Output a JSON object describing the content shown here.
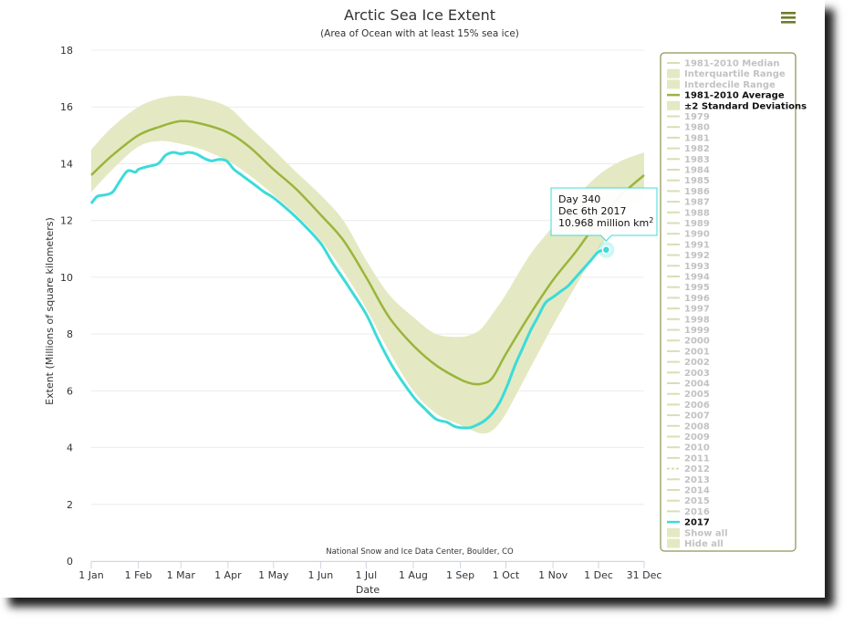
{
  "colors": {
    "average": "#9ab53c",
    "std_band": "#e4e9c3",
    "current": "#3cdbd9",
    "legend_border": "#6d7c2d",
    "legend_active_text": "#111111",
    "legend_inactive_text": "#c2c2c2",
    "legend_inactive_line": "#d8dfb4",
    "tooltip_border": "#3cdbd9"
  },
  "menu": {
    "icon": "hamburger-menu-icon"
  },
  "chart_data": {
    "type": "line",
    "title": "Arctic Sea Ice Extent",
    "subtitle": "(Area of Ocean with at least 15% sea ice)",
    "xlabel": "Date",
    "ylabel": "Extent (Millions of square kilometers)",
    "credit": "National Snow and Ice Data Center, Boulder, CO",
    "xlim": [
      1,
      365
    ],
    "ylim": [
      0,
      18
    ],
    "yticks": [
      0,
      2,
      4,
      6,
      8,
      10,
      12,
      14,
      16,
      18
    ],
    "y_tick_labels": [
      "0",
      "2",
      "4",
      "6",
      "8",
      "10",
      "12",
      "14",
      "16",
      "18"
    ],
    "xticks": [
      {
        "day": 1,
        "label": "1 Jan"
      },
      {
        "day": 32,
        "label": "1 Feb"
      },
      {
        "day": 60,
        "label": "1 Mar"
      },
      {
        "day": 91,
        "label": "1 Apr"
      },
      {
        "day": 121,
        "label": "1 May"
      },
      {
        "day": 152,
        "label": "1 Jun"
      },
      {
        "day": 182,
        "label": "1 Jul"
      },
      {
        "day": 213,
        "label": "1 Aug"
      },
      {
        "day": 244,
        "label": "1 Sep"
      },
      {
        "day": 274,
        "label": "1 Oct"
      },
      {
        "day": 305,
        "label": "1 Nov"
      },
      {
        "day": 335,
        "label": "1 Dec"
      },
      {
        "day": 365,
        "label": "31 Dec"
      }
    ],
    "grid": "horizontal",
    "legend_position": "right",
    "series": [
      {
        "name": "±2 Standard Deviations",
        "kind": "band",
        "x": [
          1,
          15,
          32,
          46,
          60,
          74,
          91,
          105,
          121,
          136,
          152,
          167,
          182,
          197,
          213,
          228,
          244,
          252,
          258,
          265,
          274,
          290,
          305,
          320,
          335,
          350,
          365
        ],
        "low": [
          13.0,
          13.8,
          14.6,
          14.8,
          14.7,
          14.5,
          14.1,
          13.6,
          12.9,
          12.2,
          11.3,
          10.2,
          8.9,
          7.4,
          6.0,
          5.2,
          4.8,
          4.6,
          4.5,
          4.6,
          5.2,
          6.8,
          8.3,
          9.7,
          11.0,
          12.0,
          12.9
        ],
        "high": [
          14.5,
          15.3,
          16.0,
          16.3,
          16.4,
          16.3,
          16.0,
          15.3,
          14.5,
          13.7,
          12.9,
          12.0,
          10.6,
          9.4,
          8.6,
          8.0,
          7.9,
          8.0,
          8.2,
          8.7,
          9.4,
          10.8,
          11.8,
          12.8,
          13.6,
          14.1,
          14.4
        ]
      },
      {
        "name": "1981-2010 Average",
        "kind": "line",
        "x": [
          1,
          15,
          32,
          46,
          60,
          74,
          91,
          105,
          121,
          136,
          152,
          167,
          182,
          197,
          213,
          228,
          244,
          252,
          258,
          265,
          274,
          290,
          305,
          320,
          335,
          350,
          365
        ],
        "y": [
          13.6,
          14.3,
          15.0,
          15.3,
          15.5,
          15.4,
          15.1,
          14.6,
          13.8,
          13.1,
          12.2,
          11.3,
          10.0,
          8.6,
          7.6,
          6.9,
          6.4,
          6.25,
          6.25,
          6.45,
          7.3,
          8.7,
          9.9,
          10.9,
          12.0,
          12.9,
          13.6
        ]
      },
      {
        "name": "2017",
        "kind": "line",
        "x": [
          1,
          5,
          10,
          15,
          20,
          25,
          30,
          32,
          38,
          45,
          50,
          55,
          60,
          65,
          70,
          75,
          80,
          85,
          90,
          95,
          100,
          105,
          110,
          115,
          121,
          130,
          140,
          152,
          160,
          170,
          182,
          190,
          200,
          213,
          220,
          228,
          235,
          240,
          244,
          250,
          255,
          260,
          265,
          270,
          275,
          280,
          285,
          290,
          295,
          300,
          305,
          310,
          315,
          320,
          325,
          330,
          335,
          340
        ],
        "y": [
          12.6,
          12.85,
          12.9,
          13.0,
          13.4,
          13.75,
          13.7,
          13.8,
          13.9,
          14.0,
          14.3,
          14.4,
          14.35,
          14.4,
          14.35,
          14.2,
          14.1,
          14.15,
          14.1,
          13.8,
          13.6,
          13.4,
          13.2,
          13.0,
          12.8,
          12.4,
          11.9,
          11.2,
          10.5,
          9.7,
          8.7,
          7.8,
          6.8,
          5.8,
          5.4,
          5.0,
          4.9,
          4.75,
          4.7,
          4.7,
          4.8,
          4.95,
          5.2,
          5.6,
          6.2,
          6.9,
          7.5,
          8.1,
          8.6,
          9.1,
          9.3,
          9.5,
          9.7,
          10.0,
          10.3,
          10.6,
          10.9,
          10.968
        ]
      }
    ],
    "highlight": {
      "day": 340,
      "date": "Dec 6th 2017",
      "value": 10.968
    },
    "tooltip": {
      "line1": "Day 340",
      "line2": "Dec 6th 2017",
      "line3_value": "10.968 million km",
      "line3_sup": "2"
    },
    "legend": [
      {
        "label": "1981-2010 Median",
        "style": "line",
        "active": false
      },
      {
        "label": "Interquartile Range",
        "style": "box",
        "active": false
      },
      {
        "label": "Interdecile Range",
        "style": "box",
        "active": false
      },
      {
        "label": "1981-2010 Average",
        "style": "line",
        "active": true
      },
      {
        "label": "±2 Standard Deviations",
        "style": "box",
        "active": true
      },
      {
        "label": "1979",
        "style": "line",
        "active": false
      },
      {
        "label": "1980",
        "style": "line",
        "active": false
      },
      {
        "label": "1981",
        "style": "line",
        "active": false
      },
      {
        "label": "1982",
        "style": "line",
        "active": false
      },
      {
        "label": "1983",
        "style": "line",
        "active": false
      },
      {
        "label": "1984",
        "style": "line",
        "active": false
      },
      {
        "label": "1985",
        "style": "line",
        "active": false
      },
      {
        "label": "1986",
        "style": "line",
        "active": false
      },
      {
        "label": "1987",
        "style": "line",
        "active": false
      },
      {
        "label": "1988",
        "style": "line",
        "active": false
      },
      {
        "label": "1989",
        "style": "line",
        "active": false
      },
      {
        "label": "1990",
        "style": "line",
        "active": false
      },
      {
        "label": "1991",
        "style": "line",
        "active": false
      },
      {
        "label": "1992",
        "style": "line",
        "active": false
      },
      {
        "label": "1993",
        "style": "line",
        "active": false
      },
      {
        "label": "1994",
        "style": "line",
        "active": false
      },
      {
        "label": "1995",
        "style": "line",
        "active": false
      },
      {
        "label": "1996",
        "style": "line",
        "active": false
      },
      {
        "label": "1997",
        "style": "line",
        "active": false
      },
      {
        "label": "1998",
        "style": "line",
        "active": false
      },
      {
        "label": "1999",
        "style": "line",
        "active": false
      },
      {
        "label": "2000",
        "style": "line",
        "active": false
      },
      {
        "label": "2001",
        "style": "line",
        "active": false
      },
      {
        "label": "2002",
        "style": "line",
        "active": false
      },
      {
        "label": "2003",
        "style": "line",
        "active": false
      },
      {
        "label": "2004",
        "style": "line",
        "active": false
      },
      {
        "label": "2005",
        "style": "line",
        "active": false
      },
      {
        "label": "2006",
        "style": "line",
        "active": false
      },
      {
        "label": "2007",
        "style": "line",
        "active": false
      },
      {
        "label": "2008",
        "style": "line",
        "active": false
      },
      {
        "label": "2009",
        "style": "line",
        "active": false
      },
      {
        "label": "2010",
        "style": "line",
        "active": false
      },
      {
        "label": "2011",
        "style": "line",
        "active": false
      },
      {
        "label": "2012",
        "style": "dashed",
        "active": false
      },
      {
        "label": "2013",
        "style": "line",
        "active": false
      },
      {
        "label": "2014",
        "style": "line",
        "active": false
      },
      {
        "label": "2015",
        "style": "line",
        "active": false
      },
      {
        "label": "2016",
        "style": "line",
        "active": false
      },
      {
        "label": "2017",
        "style": "line",
        "active": true
      },
      {
        "label": "Show all",
        "style": "box",
        "active": false
      },
      {
        "label": "Hide all",
        "style": "box",
        "active": false
      }
    ]
  }
}
